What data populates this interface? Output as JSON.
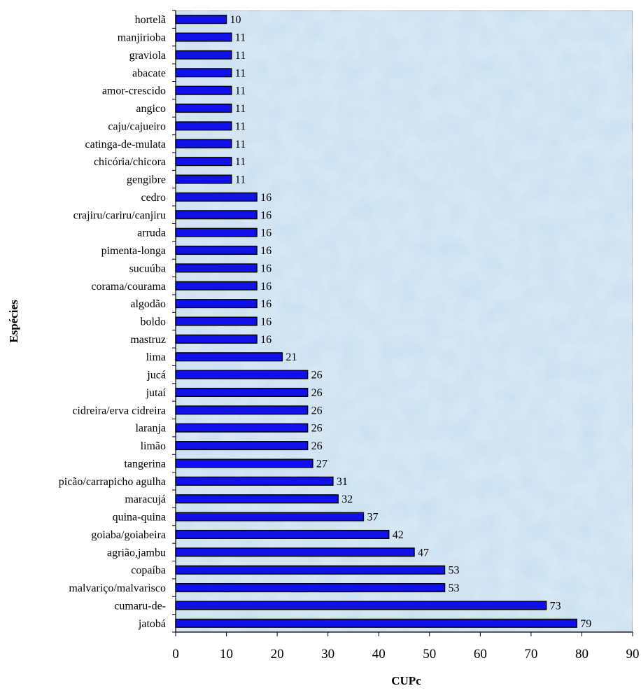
{
  "chart_data": {
    "type": "bar",
    "orientation": "horizontal",
    "title": "",
    "xlabel": "CUPc",
    "ylabel": "Espécies",
    "xlim": [
      0,
      90
    ],
    "xticks": [
      0,
      10,
      20,
      30,
      40,
      50,
      60,
      70,
      80,
      90
    ],
    "grid": false,
    "legend": "none",
    "bar_color": "#1010e8",
    "plot_background": "#c9dff0",
    "categories": [
      "hortelã",
      "manjirioba",
      "graviola",
      "abacate",
      "amor-crescido",
      "angico",
      "caju/cajueiro",
      "catinga-de-mulata",
      "chicória/chicora",
      "gengibre",
      "cedro",
      "crajiru/cariru/canjiru",
      "arruda",
      "pimenta-longa",
      "sucuúba",
      "corama/courama",
      "algodão",
      "boldo",
      "mastruz",
      "lima",
      "jucá",
      "jutaí",
      "cidreira/erva cidreira",
      "laranja",
      "limão",
      "tangerina",
      "picão/carrapicho agulha",
      "maracujá",
      "quina-quina",
      "goiaba/goiabeira",
      "agrião,jambu",
      "copaíba",
      "malvariço/malvarisco",
      "cumaru-de-",
      "jatobá"
    ],
    "values": [
      10,
      11,
      11,
      11,
      11,
      11,
      11,
      11,
      11,
      11,
      16,
      16,
      16,
      16,
      16,
      16,
      16,
      16,
      16,
      21,
      26,
      26,
      26,
      26,
      26,
      27,
      31,
      32,
      37,
      42,
      47,
      53,
      53,
      73,
      79
    ],
    "data_labels": [
      "10",
      "11",
      "11",
      "11",
      "11",
      "11",
      "11",
      "11",
      "11",
      "11",
      "16",
      "16",
      "16",
      "16",
      "16",
      "16",
      "16",
      "16",
      "16",
      "21",
      "26",
      "26",
      "26",
      "26",
      "26",
      "27",
      "31",
      "32",
      "37",
      "42",
      "47",
      "53",
      "53",
      "73",
      "79"
    ]
  }
}
